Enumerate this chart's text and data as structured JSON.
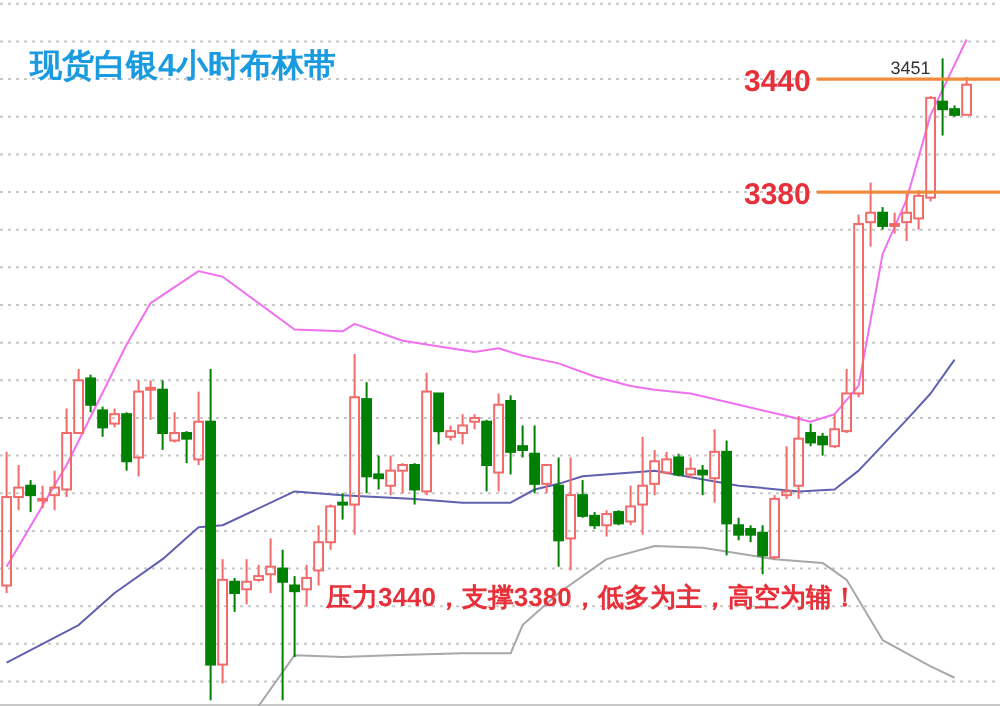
{
  "chart_data": {
    "type": "candlestick",
    "title": "现货白银4小时布林带",
    "categories": [
      null,
      null,
      null,
      null,
      null,
      null,
      null,
      null,
      null,
      null,
      null,
      null,
      null,
      null,
      null,
      null,
      null,
      null,
      null,
      null,
      null,
      null,
      null,
      null,
      null,
      null,
      null,
      null,
      null,
      null,
      null,
      null,
      null,
      null,
      null,
      null,
      null,
      null,
      null,
      null,
      null,
      null,
      null,
      null,
      null,
      null,
      null,
      null,
      null,
      null,
      null,
      null,
      null,
      null,
      null,
      null,
      null,
      null,
      null,
      null,
      null,
      null,
      null,
      null,
      null,
      null,
      null,
      null,
      null,
      null,
      null,
      null,
      null,
      null,
      null,
      null,
      null,
      null,
      null,
      null,
      null
    ],
    "ohlc": [
      [
        3171,
        3242,
        3167,
        3218
      ],
      [
        3218,
        3235,
        3211,
        3223
      ],
      [
        3224,
        3227,
        3210,
        3219
      ],
      [
        3217,
        3224,
        3212,
        3217
      ],
      [
        3219,
        3232,
        3211,
        3223
      ],
      [
        3222,
        3265,
        3218,
        3252
      ],
      [
        3252,
        3286,
        3252,
        3280
      ],
      [
        3281,
        3283,
        3263,
        3267
      ],
      [
        3264,
        3266,
        3250,
        3255
      ],
      [
        3257,
        3265,
        3255,
        3262
      ],
      [
        3262,
        3263,
        3232,
        3237
      ],
      [
        3239,
        3280,
        3229,
        3274
      ],
      [
        3275,
        3280,
        3259,
        3276
      ],
      [
        3275,
        3280,
        3243,
        3252
      ],
      [
        3248,
        3263,
        3247,
        3252
      ],
      [
        3252,
        3253,
        3236,
        3249
      ],
      [
        3238,
        3274,
        3235,
        3258
      ],
      [
        3258,
        3286,
        3110,
        3129
      ],
      [
        3129,
        3185,
        3119,
        3174
      ],
      [
        3173,
        3175,
        3157,
        3167
      ],
      [
        3169,
        3185,
        3161,
        3173
      ],
      [
        3174,
        3182,
        3173,
        3176
      ],
      [
        3177,
        3196,
        3167,
        3181
      ],
      [
        3180,
        3190,
        3110,
        3173
      ],
      [
        3171,
        3176,
        3133,
        3168
      ],
      [
        3169,
        3182,
        3160,
        3175
      ],
      [
        3179,
        3203,
        3171,
        3194
      ],
      [
        3194,
        3214,
        3190,
        3213
      ],
      [
        3215,
        3220,
        3206,
        3214
      ],
      [
        3214,
        3294,
        3198,
        3271
      ],
      [
        3270,
        3279,
        3220,
        3229
      ],
      [
        3230,
        3240,
        3222,
        3228
      ],
      [
        3224,
        3240,
        3219,
        3232
      ],
      [
        3232,
        3236,
        3220,
        3235
      ],
      [
        3235,
        3236,
        3214,
        3222
      ],
      [
        3221,
        3284,
        3219,
        3274
      ],
      [
        3273,
        3273,
        3246,
        3253
      ],
      [
        3250,
        3256,
        3248,
        3253
      ],
      [
        3252,
        3262,
        3246,
        3256
      ],
      [
        3258,
        3262,
        3254,
        3260
      ],
      [
        3258,
        3259,
        3221,
        3235
      ],
      [
        3231,
        3273,
        3221,
        3267
      ],
      [
        3269,
        3272,
        3230,
        3242
      ],
      [
        3245,
        3256,
        3239,
        3243
      ],
      [
        3241,
        3256,
        3220,
        3225
      ],
      [
        3225,
        3235,
        3220,
        3235
      ],
      [
        3224,
        3239,
        3181,
        3195
      ],
      [
        3196,
        3239,
        3179,
        3219
      ],
      [
        3219,
        3227,
        3207,
        3208
      ],
      [
        3208,
        3210,
        3201,
        3203
      ],
      [
        3203,
        3211,
        3197,
        3209
      ],
      [
        3210,
        3211,
        3203,
        3204
      ],
      [
        3205,
        3224,
        3203,
        3213
      ],
      [
        3214,
        3250,
        3198,
        3224
      ],
      [
        3225,
        3243,
        3219,
        3237
      ],
      [
        3231,
        3242,
        3230,
        3238
      ],
      [
        3239,
        3241,
        3229,
        3230
      ],
      [
        3230,
        3239,
        3228,
        3233
      ],
      [
        3232,
        3235,
        3219,
        3230
      ],
      [
        3228,
        3254,
        3215,
        3242
      ],
      [
        3242,
        3248,
        3187,
        3204
      ],
      [
        3203,
        3207,
        3195,
        3198
      ],
      [
        3201,
        3203,
        3194,
        3198
      ],
      [
        3199,
        3203,
        3177,
        3187
      ],
      [
        3186,
        3219,
        3185,
        3217
      ],
      [
        3219,
        3245,
        3217,
        3221
      ],
      [
        3224,
        3261,
        3217,
        3249
      ],
      [
        3252,
        3257,
        3245,
        3247
      ],
      [
        3250,
        3252,
        3240,
        3246
      ],
      [
        3245,
        3262,
        3244,
        3254
      ],
      [
        3253,
        3286,
        3252,
        3273
      ],
      [
        3273,
        3368,
        3271,
        3363
      ],
      [
        3364,
        3385,
        3351,
        3369
      ],
      [
        3369,
        3372,
        3360,
        3362
      ],
      [
        3362,
        3369,
        3358,
        3363
      ],
      [
        3364,
        3379,
        3354,
        3369
      ],
      [
        3366,
        3381,
        3360,
        3378
      ],
      [
        3377,
        3431,
        3375,
        3430
      ],
      [
        3428,
        3451,
        3410,
        3424
      ],
      [
        3424,
        3426,
        3420,
        3421
      ],
      [
        3421,
        3441,
        3421,
        3437
      ]
    ],
    "series": [
      {
        "type": "line",
        "color": "#f070f0",
        "values": [
          3181,
          null,
          null,
          null,
          null,
          3235,
          null,
          null,
          null,
          null,
          3299,
          null,
          3321,
          null,
          null,
          null,
          3338,
          null,
          3335,
          null,
          null,
          null,
          null,
          null,
          3307,
          null,
          null,
          null,
          3306,
          3310,
          null,
          null,
          null,
          3301,
          null,
          3299,
          null,
          null,
          null,
          3295,
          null,
          3297,
          null,
          3293,
          null,
          null,
          3289,
          null,
          null,
          3282,
          null,
          null,
          3277,
          null,
          3275,
          null,
          null,
          3273,
          null,
          null,
          null,
          3267,
          null,
          null,
          null,
          3261,
          null,
          3258,
          null,
          3262,
          null,
          3277,
          null,
          3347,
          null,
          3376,
          null,
          3421,
          null,
          null,
          3461
        ]
      },
      {
        "type": "line",
        "color": "#6060b0",
        "values": [
          3130,
          null,
          null,
          null,
          null,
          null,
          3150,
          null,
          null,
          3167,
          null,
          null,
          null,
          3185,
          null,
          null,
          3202,
          null,
          3203,
          null,
          null,
          null,
          null,
          null,
          3221,
          null,
          null,
          null,
          3219,
          null,
          null,
          null,
          null,
          null,
          3217,
          null,
          null,
          null,
          3215,
          null,
          null,
          null,
          3215,
          null,
          3222,
          null,
          3225,
          null,
          3229,
          null,
          null,
          null,
          null,
          null,
          3232,
          null,
          null,
          null,
          null,
          null,
          null,
          3224,
          null,
          null,
          null,
          null,
          3221,
          null,
          null,
          3222,
          null,
          3232,
          null,
          null,
          null,
          3259,
          null,
          3273,
          null,
          3291,
          null
        ]
      },
      {
        "type": "line",
        "color": "#a8a8a8",
        "values": [
          null,
          null,
          null,
          null,
          null,
          null,
          null,
          null,
          null,
          null,
          null,
          null,
          null,
          null,
          null,
          null,
          null,
          null,
          null,
          null,
          null,
          3107,
          null,
          null,
          3134,
          null,
          null,
          null,
          3133,
          null,
          null,
          null,
          3134,
          null,
          null,
          null,
          null,
          null,
          3135,
          null,
          null,
          null,
          3135,
          3150,
          null,
          null,
          3167,
          null,
          null,
          null,
          3185,
          null,
          null,
          null,
          3192,
          null,
          null,
          null,
          3191,
          null,
          null,
          null,
          null,
          null,
          3185,
          null,
          null,
          null,
          3183,
          null,
          3174,
          null,
          null,
          3142,
          null,
          null,
          null,
          3128,
          null,
          3122,
          null
        ]
      }
    ],
    "yticks": [
      {
        "value": 3120,
        "label": null
      },
      {
        "value": 3140,
        "label": null
      },
      {
        "value": 3160,
        "label": null
      },
      {
        "value": 3180,
        "label": null
      },
      {
        "value": 3200,
        "label": null
      },
      {
        "value": 3220,
        "label": null
      },
      {
        "value": 3240,
        "label": null
      },
      {
        "value": 3260,
        "label": null
      },
      {
        "value": 3280,
        "label": null
      },
      {
        "value": 3300,
        "label": null
      },
      {
        "value": 3320,
        "label": null
      },
      {
        "value": 3340,
        "label": null
      },
      {
        "value": 3360,
        "label": null
      },
      {
        "value": 3380,
        "label": null
      },
      {
        "value": 3400,
        "label": null
      },
      {
        "value": 3420,
        "label": null
      },
      {
        "value": 3440,
        "label": null
      },
      {
        "value": 3460,
        "label": null
      },
      {
        "value": 3480,
        "label": null
      }
    ],
    "ylim": [
      3107,
      3482
    ],
    "grid": "y",
    "ref_lines": [
      {
        "axis": "y",
        "value": 3440,
        "label": "3440",
        "color": "#f08a3c"
      },
      {
        "axis": "y",
        "value": 3380,
        "label": "3380",
        "color": "#f08a3c"
      }
    ],
    "annotations": [
      "3451",
      "压力3440，支撑3380，低多为主，高空为辅！"
    ]
  }
}
